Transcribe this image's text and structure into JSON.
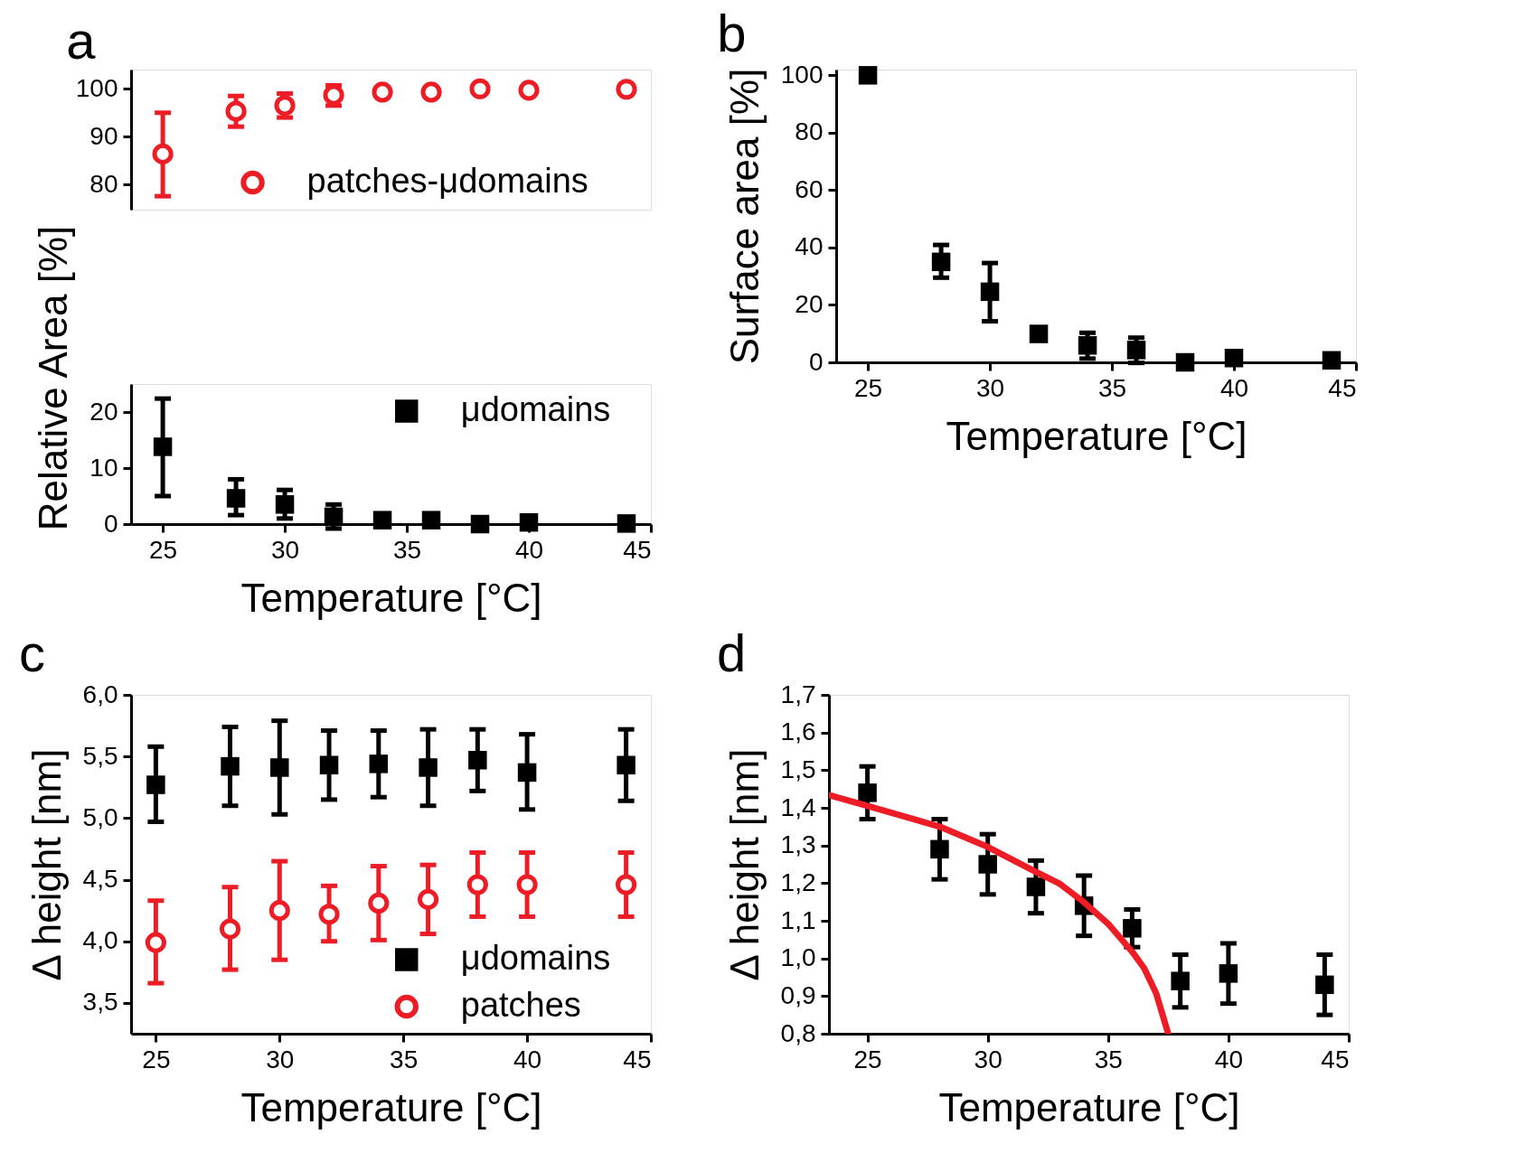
{
  "chart_data": [
    {
      "type": "scatter",
      "title": "a",
      "x": [
        25,
        28,
        30,
        32,
        34,
        36,
        38,
        40,
        44
      ],
      "xlim": [
        23.7,
        45
      ],
      "xticks": [
        25,
        30,
        35,
        40,
        45
      ],
      "ylim": [
        74.8,
        104
      ],
      "yticks": [
        80,
        90,
        100
      ],
      "tick_labels": "y",
      "legend": "bottom right",
      "series": [
        {
          "name": "patches-μdomains",
          "color": "#ee1c24",
          "marker": "circle",
          "values": [
            86.4,
            95.3,
            96.5,
            98.7,
            99.3,
            99.3,
            100.0,
            99.7,
            99.9
          ],
          "errors": [
            [
              77.6,
              95.0
            ],
            [
              92.1,
              98.5
            ],
            [
              94.0,
              99.0
            ],
            [
              96.5,
              100.7
            ],
            null,
            null,
            null,
            null,
            null
          ]
        }
      ]
    },
    {
      "type": "scatter",
      "x": [
        25,
        28,
        30,
        32,
        34,
        36,
        38,
        40,
        44
      ],
      "xlim": [
        23.7,
        45
      ],
      "xticks": [
        25,
        30,
        35,
        40,
        45
      ],
      "ylim": [
        0,
        25
      ],
      "yticks": [
        0,
        10,
        20
      ],
      "xlabel": "Temperature [°C]",
      "ylabel": "Relative Area [%]",
      "legend": "top right",
      "series": [
        {
          "name": "μdomains",
          "color": "#000000",
          "marker": "square",
          "values": [
            13.8,
            4.6,
            3.5,
            1.3,
            0.7,
            0.7,
            0.0,
            0.3,
            0.1
          ],
          "errors": [
            [
              5.0,
              22.4
            ],
            [
              1.6,
              8.0
            ],
            [
              1.0,
              6.1
            ],
            [
              -0.8,
              3.5
            ],
            null,
            null,
            null,
            null,
            null
          ]
        }
      ]
    },
    {
      "type": "scatter",
      "title": "b",
      "x": [
        25,
        28,
        30,
        32,
        34,
        36,
        38,
        40,
        44
      ],
      "xlim": [
        23.7,
        45
      ],
      "xticks": [
        25,
        30,
        35,
        40,
        45
      ],
      "ylim": [
        0,
        102
      ],
      "yticks": [
        0,
        20,
        40,
        60,
        80,
        100
      ],
      "xlabel": "Temperature [°C]",
      "ylabel": "Surface area [%]",
      "series": [
        {
          "color": "#000000",
          "marker": "square",
          "values": [
            100,
            35.0,
            24.6,
            9.9,
            5.9,
            4.3,
            0.0,
            1.5,
            0.7
          ],
          "errors": [
            null,
            [
              29.5,
              40.9
            ],
            [
              14.3,
              34.6
            ],
            null,
            [
              1.3,
              10.3
            ],
            [
              -0.2,
              8.6
            ],
            null,
            null,
            null
          ]
        }
      ]
    },
    {
      "type": "scatter",
      "title": "c",
      "x": [
        25,
        28,
        30,
        32,
        34,
        36,
        38,
        40,
        44
      ],
      "xlim": [
        24,
        45
      ],
      "xticks": [
        25,
        30,
        35,
        40,
        45
      ],
      "ylim": [
        3.25,
        6.0
      ],
      "yticks": [
        {
          "value": 3.5,
          "label": "3,5"
        },
        {
          "value": 4.0,
          "label": "4,0"
        },
        {
          "value": 4.5,
          "label": "4,5"
        },
        {
          "value": 5.0,
          "label": "5,0"
        },
        {
          "value": 5.5,
          "label": "5,5"
        },
        {
          "value": 6.0,
          "label": "6,0"
        }
      ],
      "xlabel": "Temperature [°C]",
      "ylabel": "Δ height [nm]",
      "legend": "bottom right",
      "series": [
        {
          "name": "μdomains",
          "color": "#000000",
          "marker": "square",
          "values": [
            5.27,
            5.42,
            5.41,
            5.43,
            5.44,
            5.41,
            5.47,
            5.37,
            5.43
          ],
          "errors": [
            [
              4.97,
              5.58
            ],
            [
              5.1,
              5.74
            ],
            [
              5.03,
              5.79
            ],
            [
              5.15,
              5.71
            ],
            [
              5.17,
              5.71
            ],
            [
              5.1,
              5.72
            ],
            [
              5.22,
              5.72
            ],
            [
              5.07,
              5.68
            ],
            [
              5.14,
              5.72
            ]
          ]
        },
        {
          "name": "patches",
          "color": "#ee1c24",
          "marker": "circle",
          "values": [
            3.99,
            4.1,
            4.25,
            4.22,
            4.31,
            4.34,
            4.46,
            4.46,
            4.46
          ],
          "errors": [
            [
              3.66,
              4.33
            ],
            [
              3.77,
              4.44
            ],
            [
              3.85,
              4.65
            ],
            [
              4.0,
              4.45
            ],
            [
              4.01,
              4.61
            ],
            [
              4.06,
              4.62
            ],
            [
              4.2,
              4.72
            ],
            [
              4.2,
              4.72
            ],
            [
              4.2,
              4.72
            ]
          ]
        }
      ]
    },
    {
      "type": "scatter",
      "title": "d",
      "x": [
        25,
        28,
        30,
        32,
        34,
        36,
        38,
        40,
        44
      ],
      "xlim": [
        23.4,
        45
      ],
      "xticks": [
        25,
        30,
        35,
        40,
        45
      ],
      "ylim": [
        0.8,
        1.7
      ],
      "yticks": [
        {
          "value": 0.8,
          "label": "0,8"
        },
        {
          "value": 0.9,
          "label": "0,9"
        },
        {
          "value": 1.0,
          "label": "1,0"
        },
        {
          "value": 1.1,
          "label": "1,1"
        },
        {
          "value": 1.2,
          "label": "1,2"
        },
        {
          "value": 1.3,
          "label": "1,3"
        },
        {
          "value": 1.4,
          "label": "1,4"
        },
        {
          "value": 1.5,
          "label": "1,5"
        },
        {
          "value": 1.6,
          "label": "1,6"
        },
        {
          "value": 1.7,
          "label": "1,7"
        }
      ],
      "xlabel": "Temperature [°C]",
      "ylabel": "Δ height [nm]",
      "series": [
        {
          "color": "#000000",
          "marker": "square",
          "values": [
            1.44,
            1.29,
            1.25,
            1.19,
            1.14,
            1.08,
            0.94,
            0.96,
            0.93
          ],
          "errors": [
            [
              1.37,
              1.51
            ],
            [
              1.21,
              1.37
            ],
            [
              1.17,
              1.33
            ],
            [
              1.12,
              1.26
            ],
            [
              1.06,
              1.22
            ],
            [
              1.03,
              1.13
            ],
            [
              0.87,
              1.01
            ],
            [
              0.88,
              1.04
            ],
            [
              0.85,
              1.01
            ]
          ]
        },
        {
          "type": "line",
          "color": "#ee1c24",
          "line_style": "solid",
          "x": [
            23.4,
            25,
            28,
            30,
            32,
            33,
            34,
            35,
            36,
            36.5,
            37,
            37.5
          ],
          "values": [
            1.434,
            1.405,
            1.35,
            1.296,
            1.23,
            1.198,
            1.149,
            1.092,
            1.018,
            0.974,
            0.907,
            0.8
          ]
        }
      ]
    }
  ]
}
